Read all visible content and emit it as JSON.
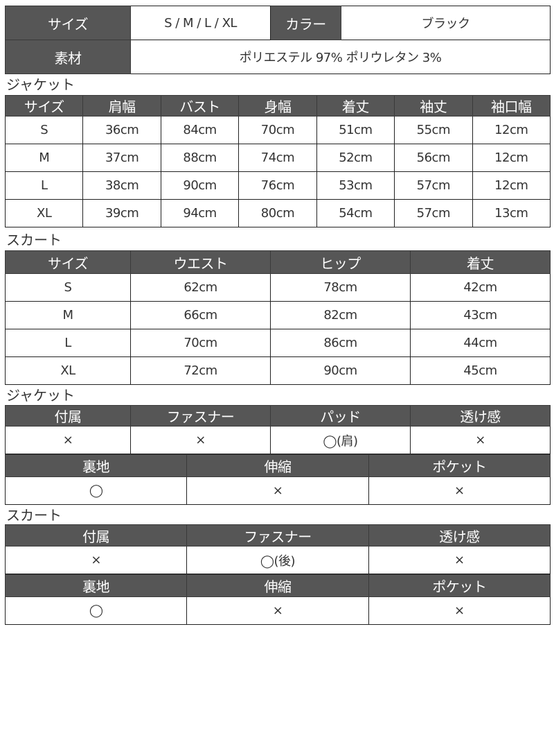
{
  "summary": {
    "size_label": "サイズ",
    "size_value": "S / M / L / XL",
    "color_label": "カラー",
    "color_value": "ブラック",
    "material_label": "素材",
    "material_value": "ポリエステル 97%   ポリウレタン 3%"
  },
  "jacket_size": {
    "title": "ジャケット",
    "headers": [
      "サイズ",
      "肩幅",
      "バスト",
      "身幅",
      "着丈",
      "袖丈",
      "袖口幅"
    ],
    "rows": [
      [
        "S",
        "36cm",
        "84cm",
        "70cm",
        "51cm",
        "55cm",
        "12cm"
      ],
      [
        "M",
        "37cm",
        "88cm",
        "74cm",
        "52cm",
        "56cm",
        "12cm"
      ],
      [
        "L",
        "38cm",
        "90cm",
        "76cm",
        "53cm",
        "57cm",
        "12cm"
      ],
      [
        "XL",
        "39cm",
        "94cm",
        "80cm",
        "54cm",
        "57cm",
        "13cm"
      ]
    ]
  },
  "skirt_size": {
    "title": "スカート",
    "headers": [
      "サイズ",
      "ウエスト",
      "ヒップ",
      "着丈"
    ],
    "rows": [
      [
        "S",
        "62cm",
        "78cm",
        "42cm"
      ],
      [
        "M",
        "66cm",
        "82cm",
        "43cm"
      ],
      [
        "L",
        "70cm",
        "86cm",
        "44cm"
      ],
      [
        "XL",
        "72cm",
        "90cm",
        "45cm"
      ]
    ]
  },
  "jacket_attr": {
    "title": "ジャケット",
    "table1": {
      "headers": [
        "付属",
        "ファスナー",
        "パッド",
        "透け感"
      ],
      "rows": [
        [
          "×",
          "×",
          "◯(肩)",
          "×"
        ]
      ]
    },
    "table2": {
      "headers": [
        "裏地",
        "伸縮",
        "ポケット"
      ],
      "rows": [
        [
          "◯",
          "×",
          "×"
        ]
      ]
    }
  },
  "skirt_attr": {
    "title": "スカート",
    "table1": {
      "headers": [
        "付属",
        "ファスナー",
        "透け感"
      ],
      "rows": [
        [
          "×",
          "◯(後)",
          "×"
        ]
      ]
    },
    "table2": {
      "headers": [
        "裏地",
        "伸縮",
        "ポケット"
      ],
      "rows": [
        [
          "◯",
          "×",
          "×"
        ]
      ]
    }
  }
}
